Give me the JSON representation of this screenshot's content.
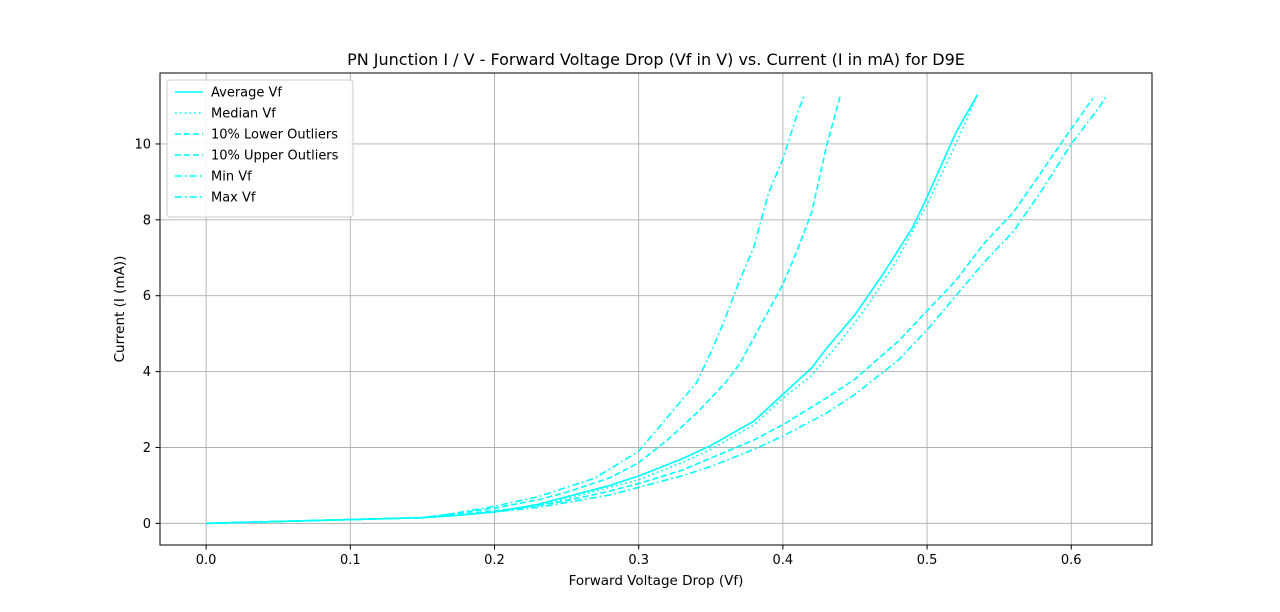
{
  "chart_data": {
    "type": "line",
    "title": "PN Junction I / V - Forward Voltage Drop (Vf in V) vs. Current (I in mA) for D9E",
    "xlabel": "Forward Voltage Drop (Vf)",
    "ylabel": "Current (I (mA))",
    "xlim": [
      -0.032,
      0.656
    ],
    "ylim": [
      -0.57,
      11.87
    ],
    "xticks": [
      0.0,
      0.1,
      0.2,
      0.3,
      0.4,
      0.5,
      0.6
    ],
    "xtick_labels": [
      "0.0",
      "0.1",
      "0.2",
      "0.3",
      "0.4",
      "0.5",
      "0.6"
    ],
    "yticks": [
      0,
      2,
      4,
      6,
      8,
      10
    ],
    "ytick_labels": [
      "0",
      "2",
      "4",
      "6",
      "8",
      "10"
    ],
    "grid": true,
    "legend_position": "top-left",
    "series": [
      {
        "name": "Average Vf",
        "color": "#00ffff",
        "dash": "solid",
        "x": [
          0,
          0.02,
          0.05,
          0.08,
          0.1,
          0.13,
          0.15,
          0.17,
          0.2,
          0.23,
          0.25,
          0.28,
          0.3,
          0.33,
          0.35,
          0.38,
          0.4,
          0.42,
          0.43,
          0.45,
          0.47,
          0.49,
          0.5,
          0.52,
          0.535
        ],
        "y": [
          0,
          0.02,
          0.05,
          0.08,
          0.1,
          0.13,
          0.15,
          0.2,
          0.3,
          0.5,
          0.7,
          1.0,
          1.25,
          1.7,
          2.05,
          2.7,
          3.4,
          4.1,
          4.6,
          5.5,
          6.6,
          7.8,
          8.6,
          10.3,
          11.3
        ]
      },
      {
        "name": "Median Vf",
        "color": "#00ffff",
        "dash": "dotted",
        "x": [
          0,
          0.02,
          0.05,
          0.08,
          0.1,
          0.13,
          0.15,
          0.17,
          0.2,
          0.23,
          0.25,
          0.28,
          0.3,
          0.33,
          0.35,
          0.38,
          0.4,
          0.42,
          0.44,
          0.46,
          0.48,
          0.5,
          0.52,
          0.535
        ],
        "y": [
          0,
          0.02,
          0.05,
          0.08,
          0.1,
          0.13,
          0.15,
          0.2,
          0.3,
          0.47,
          0.65,
          0.95,
          1.15,
          1.6,
          1.95,
          2.6,
          3.3,
          3.9,
          4.8,
          5.8,
          7.0,
          8.4,
          10.0,
          11.3
        ]
      },
      {
        "name": "10% Lower Outliers",
        "color": "#00ffff",
        "dash": "dashed",
        "x": [
          0,
          0.02,
          0.05,
          0.08,
          0.1,
          0.13,
          0.15,
          0.17,
          0.2,
          0.23,
          0.25,
          0.28,
          0.3,
          0.32,
          0.34,
          0.36,
          0.37,
          0.38,
          0.39,
          0.4,
          0.41,
          0.42,
          0.43,
          0.44
        ],
        "y": [
          0,
          0.02,
          0.05,
          0.08,
          0.1,
          0.13,
          0.15,
          0.25,
          0.4,
          0.62,
          0.82,
          1.2,
          1.6,
          2.2,
          2.9,
          3.7,
          4.2,
          4.9,
          5.6,
          6.3,
          7.2,
          8.2,
          9.9,
          11.3
        ]
      },
      {
        "name": "10% Upper Outliers",
        "color": "#00ffff",
        "dash": "dashed",
        "x": [
          0,
          0.02,
          0.05,
          0.08,
          0.1,
          0.13,
          0.15,
          0.17,
          0.2,
          0.23,
          0.25,
          0.28,
          0.3,
          0.33,
          0.35,
          0.38,
          0.4,
          0.43,
          0.45,
          0.48,
          0.5,
          0.52,
          0.54,
          0.56,
          0.58,
          0.6,
          0.615
        ],
        "y": [
          0,
          0.02,
          0.05,
          0.08,
          0.1,
          0.13,
          0.15,
          0.22,
          0.33,
          0.47,
          0.6,
          0.85,
          1.05,
          1.4,
          1.72,
          2.2,
          2.6,
          3.3,
          3.8,
          4.8,
          5.6,
          6.4,
          7.4,
          8.2,
          9.3,
          10.4,
          11.2
        ]
      },
      {
        "name": "Min Vf",
        "color": "#00ffff",
        "dash": "dashdot",
        "x": [
          0,
          0.02,
          0.05,
          0.08,
          0.1,
          0.13,
          0.15,
          0.17,
          0.2,
          0.23,
          0.25,
          0.28,
          0.3,
          0.33,
          0.35,
          0.38,
          0.4,
          0.43,
          0.45,
          0.48,
          0.5,
          0.52,
          0.54,
          0.56,
          0.58,
          0.6,
          0.62,
          0.625
        ],
        "y": [
          0,
          0.02,
          0.05,
          0.08,
          0.1,
          0.13,
          0.15,
          0.2,
          0.3,
          0.42,
          0.55,
          0.75,
          0.95,
          1.25,
          1.5,
          1.95,
          2.3,
          2.9,
          3.4,
          4.3,
          5.1,
          6.0,
          6.9,
          7.7,
          8.8,
          10.0,
          11.0,
          11.3
        ]
      },
      {
        "name": "Max Vf",
        "color": "#00ffff",
        "dash": "dashdot",
        "x": [
          0,
          0.02,
          0.05,
          0.08,
          0.1,
          0.13,
          0.15,
          0.17,
          0.2,
          0.23,
          0.25,
          0.27,
          0.3,
          0.32,
          0.34,
          0.35,
          0.36,
          0.37,
          0.38,
          0.39,
          0.4,
          0.41,
          0.415
        ],
        "y": [
          0,
          0.02,
          0.05,
          0.08,
          0.1,
          0.13,
          0.15,
          0.25,
          0.45,
          0.7,
          0.95,
          1.2,
          1.9,
          2.8,
          3.7,
          4.5,
          5.4,
          6.4,
          7.3,
          8.7,
          9.6,
          10.8,
          11.3
        ]
      }
    ]
  }
}
